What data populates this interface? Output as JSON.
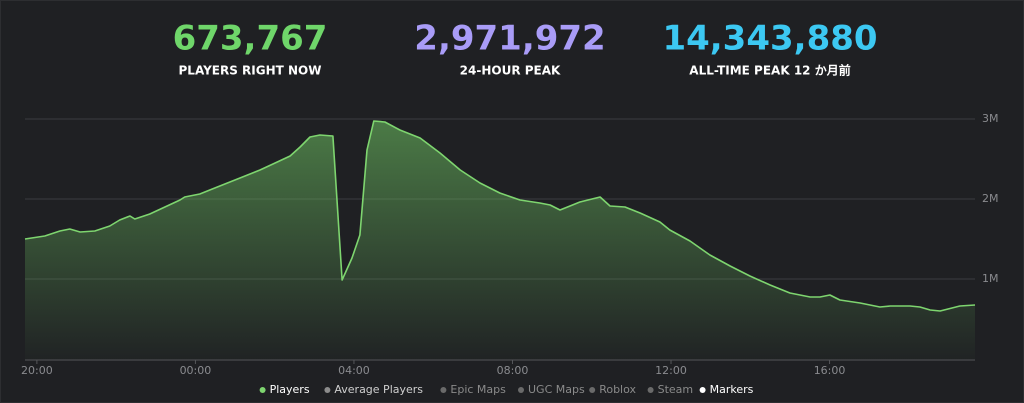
{
  "stats": [
    {
      "value": "673,767",
      "label": "PLAYERS RIGHT NOW",
      "color": "#6fd66a"
    },
    {
      "value": "2,971,972",
      "label": "24-HOUR PEAK",
      "color": "#a99cf7"
    },
    {
      "value": "14,343,880",
      "label": "ALL-TIME PEAK 12 か月前",
      "color": "#3cc8f2"
    }
  ],
  "chart_data": {
    "type": "line",
    "x": [
      -0.3,
      0.2,
      0.58,
      0.83,
      1.09,
      1.46,
      1.84,
      2.09,
      2.35,
      2.47,
      2.85,
      3.23,
      3.61,
      3.73,
      4.11,
      4.49,
      4.87,
      5.25,
      5.63,
      6.01,
      6.39,
      6.64,
      6.89,
      7.14,
      7.47,
      7.7,
      7.95,
      8.15,
      8.33,
      8.5,
      8.78,
      9.16,
      9.67,
      10.17,
      10.68,
      11.18,
      11.68,
      12.19,
      12.69,
      12.95,
      13.2,
      13.45,
      13.7,
      14.21,
      14.46,
      14.84,
      15.22,
      15.72,
      15.97,
      16.48,
      16.98,
      17.49,
      17.99,
      18.5,
      19.0,
      19.51,
      19.76,
      20.01,
      20.26,
      20.77,
      21.27,
      21.53,
      22.03,
      22.28,
      22.54,
      22.79,
      23.29,
      23.67
    ],
    "series": [
      {
        "name": "Players",
        "color": "#7ed56f",
        "values": [
          1500000,
          1538000,
          1600000,
          1625000,
          1588000,
          1600000,
          1663000,
          1738000,
          1788000,
          1750000,
          1813000,
          1900000,
          1988000,
          2025000,
          2063000,
          2138000,
          2213000,
          2288000,
          2363000,
          2450000,
          2538000,
          2650000,
          2775000,
          2800000,
          2788000,
          988000,
          1263000,
          1550000,
          2613000,
          2975000,
          2963000,
          2863000,
          2763000,
          2575000,
          2363000,
          2200000,
          2075000,
          1988000,
          1950000,
          1925000,
          1863000,
          1913000,
          1963000,
          2025000,
          1913000,
          1900000,
          1825000,
          1713000,
          1613000,
          1475000,
          1300000,
          1163000,
          1038000,
          925000,
          825000,
          775000,
          775000,
          800000,
          738000,
          700000,
          650000,
          663000,
          663000,
          650000,
          613000,
          600000,
          663000,
          675000
        ]
      }
    ],
    "xlim": [
      -0.3,
      23.67
    ],
    "xticks": [
      {
        "value": 0,
        "label": "20:00"
      },
      {
        "value": 4,
        "label": "00:00"
      },
      {
        "value": 8,
        "label": "04:00"
      },
      {
        "value": 12,
        "label": "08:00"
      },
      {
        "value": 16,
        "label": "12:00"
      },
      {
        "value": 20,
        "label": "16:00"
      }
    ],
    "ylim": [
      0,
      3000000
    ],
    "yticks": [
      {
        "value": 1000000,
        "label": "1M"
      },
      {
        "value": 2000000,
        "label": "2M"
      },
      {
        "value": 3000000,
        "label": "3M"
      }
    ],
    "grid": true,
    "toggles": [
      {
        "name": "Average Players",
        "color": "#8c8c8c",
        "text": "#cfcfcf"
      },
      {
        "name": "Epic Maps",
        "color": "#6a6a6a",
        "text": "#8a8a8a"
      },
      {
        "name": "UGC Maps",
        "color": "#6a6a6a",
        "text": "#8a8a8a"
      },
      {
        "name": "Roblox",
        "color": "#6a6a6a",
        "text": "#8a8a8a"
      },
      {
        "name": "Steam",
        "color": "#6a6a6a",
        "text": "#8a8a8a"
      },
      {
        "name": "Markers",
        "color": "#ffffff",
        "text": "#ffffff"
      }
    ]
  }
}
